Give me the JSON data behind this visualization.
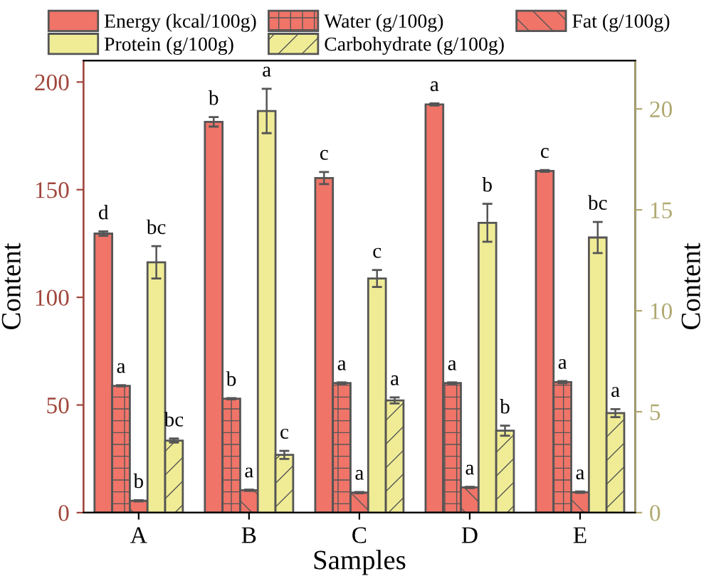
{
  "chart_data": {
    "type": "bar",
    "xlabel": "Samples",
    "ylabel": "Content",
    "y2label": "Content",
    "categories": [
      "A",
      "B",
      "C",
      "D",
      "E"
    ],
    "series": [
      {
        "name": "Energy (kcal/100g)",
        "color": "#f07468",
        "values": [
          129.6,
          181.5,
          155.4,
          189.6,
          158.7
        ],
        "errors": [
          1,
          2.2,
          2.8,
          0.5,
          0.4
        ],
        "value_labels": [
          "d",
          "b",
          "c",
          "a",
          "c"
        ]
      },
      {
        "name": "Water (g/100g)",
        "color": "#f07468",
        "values": [
          58.9,
          52.9,
          60.2,
          60.2,
          60.6
        ],
        "errors": [
          0.3,
          0.3,
          0.3,
          0.3,
          0.5
        ],
        "value_labels": [
          "a",
          "b",
          "a",
          "a",
          "a"
        ]
      },
      {
        "name": "Fat (g/100g)",
        "color": "#f07468",
        "values": [
          5.5,
          10.4,
          9.3,
          11.7,
          9.5
        ],
        "errors": [
          0.3,
          0.3,
          0.3,
          0.3,
          0.3
        ],
        "value_labels": [
          "b",
          "a",
          "a",
          "a",
          "a"
        ]
      },
      {
        "name": "Protein (g/100g)",
        "color": "#f0ec96",
        "axis": "y2",
        "values": [
          12.4,
          19.9,
          11.6,
          14.36,
          13.63
        ],
        "errors": [
          0.8,
          1.1,
          0.42,
          0.94,
          0.77
        ],
        "value_labels": [
          "bc",
          "a",
          "c",
          "b",
          "bc"
        ]
      },
      {
        "name": "Carbohydrate (g/100g)",
        "color": "#f0ec96",
        "axis": "y2",
        "values": [
          3.57,
          2.86,
          5.56,
          4.06,
          4.93
        ],
        "errors": [
          0.1,
          0.2,
          0.15,
          0.25,
          0.2
        ],
        "value_labels": [
          "bc",
          "c",
          "a",
          "b",
          "a"
        ]
      }
    ],
    "ylim": [
      0,
      210
    ],
    "yticks": [
      0,
      50,
      100,
      150,
      200
    ],
    "y2lim": [
      0,
      22.4
    ],
    "y2ticks": [
      0,
      5,
      10,
      15,
      20
    ],
    "grid": false,
    "legend": "top"
  }
}
